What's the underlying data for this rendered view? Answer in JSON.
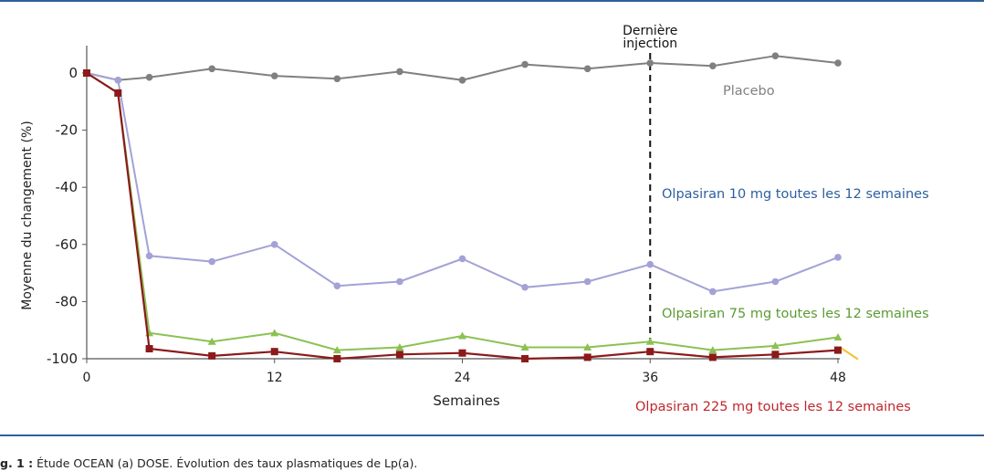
{
  "chart_data": {
    "type": "line",
    "xlabel": "Semaines",
    "ylabel": "Moyenne du changement (%)",
    "xlim": [
      0,
      48
    ],
    "ylim": [
      -100,
      10
    ],
    "x_ticks": [
      "0",
      "12",
      "24",
      "36",
      "48"
    ],
    "y_ticks": [
      "0",
      "-20",
      "-40",
      "-60",
      "-80",
      "-100"
    ],
    "grid": false,
    "vline": {
      "x": 36,
      "label_line1": "Dernière",
      "label_line2": "injection"
    },
    "series": [
      {
        "name": "Placebo",
        "color": "#808080",
        "marker": "circle",
        "x": [
          0,
          2,
          4,
          8,
          12,
          16,
          20,
          24,
          28,
          32,
          36,
          40,
          44,
          48
        ],
        "y": [
          0,
          -2.5,
          -1.5,
          1.5,
          -1,
          -2,
          0.5,
          -2.5,
          3,
          1.5,
          3.5,
          2.5,
          6,
          3.5
        ]
      },
      {
        "name": "Olpasiran 10 mg toutes les 12 semaines",
        "color": "#a3a2d6",
        "label_color": "#2c5f9e",
        "marker": "circle",
        "x": [
          0,
          2,
          4,
          8,
          12,
          16,
          20,
          24,
          28,
          32,
          36,
          40,
          44,
          48
        ],
        "y": [
          0,
          -2.5,
          -64,
          -66,
          -60,
          -74.5,
          -73,
          -65,
          -75,
          -73,
          -67,
          -76.5,
          -73,
          -64.5
        ]
      },
      {
        "name": "Olpasiran 75 mg toutes les 12 semaines",
        "color": "#8cc152",
        "label_color": "#5b9b33",
        "marker": "triangle",
        "x": [
          0,
          2,
          4,
          8,
          12,
          16,
          20,
          24,
          28,
          32,
          36,
          40,
          44,
          48
        ],
        "y": [
          0,
          -7,
          -91,
          -94,
          -91,
          -97,
          -96,
          -92,
          -96,
          -96,
          -94,
          -97,
          -95.5,
          -92.5
        ]
      },
      {
        "name": "Olpasiran 225 mg toutes les 12 semaines",
        "color": "#8b1a1a",
        "label_color": "#c0272d",
        "marker": "square",
        "x": [
          0,
          2,
          4,
          8,
          12,
          16,
          20,
          24,
          28,
          32,
          36,
          40,
          44,
          48
        ],
        "y": [
          0,
          -7,
          -96.5,
          -99,
          -97.5,
          -100,
          -98.5,
          -98,
          -100,
          -99.5,
          -97.5,
          -99.5,
          -98.5,
          -97
        ]
      }
    ]
  },
  "caption": {
    "prefix": "g. 1 :",
    "text": " Étude OCEAN (a) DOSE. Évolution des taux plasmatiques de Lp(a)."
  }
}
